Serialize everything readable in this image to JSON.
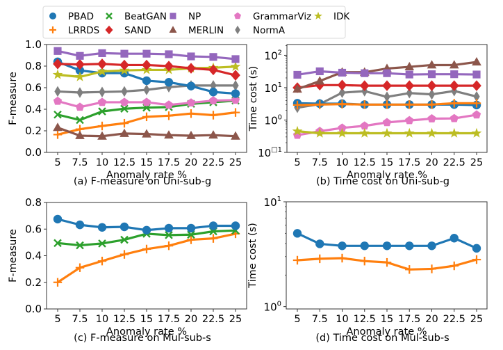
{
  "legend": {
    "entries": [
      {
        "name": "PBAD",
        "color": "#1f77b4",
        "marker": "circle"
      },
      {
        "name": "LRRDS",
        "color": "#ff7f0e",
        "marker": "plus"
      },
      {
        "name": "BeatGAN",
        "color": "#2ca02c",
        "marker": "x"
      },
      {
        "name": "SAND",
        "color": "#d62728",
        "marker": "diamond"
      },
      {
        "name": "NP",
        "color": "#9467bd",
        "marker": "square"
      },
      {
        "name": "MERLIN",
        "color": "#8c564b",
        "marker": "triangle"
      },
      {
        "name": "GrammarViz",
        "color": "#e377c2",
        "marker": "pentagon"
      },
      {
        "name": "NormA",
        "color": "#7f7f7f",
        "marker": "thin-diamond"
      },
      {
        "name": "IDK",
        "color": "#bcbd22",
        "marker": "star"
      }
    ],
    "placement": "top-center"
  },
  "chart_data": [
    {
      "id": "a",
      "type": "line",
      "title": "(a) F-measure on Uni-sub-g",
      "xlabel": "Anomaly rate %",
      "ylabel": "F-measure",
      "yscale": "linear",
      "ylim": [
        0.0,
        1.0
      ],
      "yticks": [
        0.0,
        0.2,
        0.4,
        0.6,
        0.8,
        1.0
      ],
      "ytick_labels": [
        "0.0",
        "0.2",
        "0.4",
        "0.6",
        "0.8",
        "1.0"
      ],
      "x": [
        5,
        7.5,
        10,
        12.5,
        15,
        17.5,
        20,
        22.5,
        25
      ],
      "xtick_labels": [
        "5",
        "7.5",
        "10",
        "12.5",
        "15",
        "17.5",
        "20",
        "22.5",
        "25"
      ],
      "grid": false,
      "series": [
        {
          "name": "LRRDS",
          "values": [
            0.165,
            0.215,
            0.245,
            0.27,
            0.33,
            0.34,
            0.36,
            0.345,
            0.37
          ]
        },
        {
          "name": "MERLIN",
          "values": [
            0.23,
            0.155,
            0.15,
            0.175,
            0.17,
            0.16,
            0.155,
            0.16,
            0.15
          ]
        },
        {
          "name": "BeatGAN",
          "values": [
            0.35,
            0.3,
            0.38,
            0.405,
            0.415,
            0.42,
            0.45,
            0.465,
            0.48
          ]
        },
        {
          "name": "GrammarViz",
          "values": [
            0.475,
            0.42,
            0.465,
            0.465,
            0.465,
            0.44,
            0.46,
            0.48,
            0.485
          ]
        },
        {
          "name": "NormA",
          "values": [
            0.565,
            0.555,
            0.56,
            0.565,
            0.58,
            0.605,
            0.62,
            0.62,
            0.62
          ]
        },
        {
          "name": "PBAD",
          "values": [
            0.84,
            0.76,
            0.735,
            0.735,
            0.665,
            0.65,
            0.615,
            0.56,
            0.545
          ]
        },
        {
          "name": "IDK",
          "values": [
            0.72,
            0.7,
            0.75,
            0.76,
            0.765,
            0.765,
            0.78,
            0.785,
            0.795
          ]
        },
        {
          "name": "SAND",
          "values": [
            0.82,
            0.815,
            0.82,
            0.81,
            0.81,
            0.8,
            0.78,
            0.765,
            0.715
          ]
        },
        {
          "name": "NP",
          "values": [
            0.94,
            0.895,
            0.92,
            0.915,
            0.915,
            0.91,
            0.89,
            0.885,
            0.865
          ]
        }
      ]
    },
    {
      "id": "b",
      "type": "line",
      "title": "(b) Time cost on Uni-sub-g",
      "xlabel": "Anomaly rate %",
      "ylabel": "Time cost (s)",
      "yscale": "log",
      "ylim": [
        0.1,
        215
      ],
      "yticks": [
        0.1,
        1,
        10,
        100
      ],
      "ytick_labels": [
        [
          "10",
          "□1"
        ],
        [
          "10",
          "0"
        ],
        [
          "10",
          "1"
        ],
        [
          "10",
          "2"
        ]
      ],
      "x": [
        5,
        7.5,
        10,
        12.5,
        15,
        17.5,
        20,
        22.5,
        25
      ],
      "xtick_labels": [
        "5",
        "7.5",
        "10",
        "12.5",
        "15",
        "17.5",
        "20",
        "22.5",
        "25"
      ],
      "grid": false,
      "series": [
        {
          "name": "GrammarViz",
          "values": [
            0.34,
            0.45,
            0.57,
            0.66,
            0.84,
            0.97,
            1.1,
            1.12,
            1.45
          ]
        },
        {
          "name": "IDK",
          "values": [
            0.45,
            0.39,
            0.39,
            0.39,
            0.39,
            0.39,
            0.39,
            0.39,
            0.39
          ]
        },
        {
          "name": "NormA",
          "values": [
            2.4,
            3.1,
            7.0,
            7.8,
            5.2,
            6.8,
            6.2,
            7.9,
            5.3
          ]
        },
        {
          "name": "PBAD",
          "values": [
            3.3,
            3.2,
            3.2,
            3.0,
            3.0,
            3.0,
            3.0,
            3.0,
            2.9
          ]
        },
        {
          "name": "LRRDS",
          "values": [
            2.9,
            3.0,
            3.1,
            3.0,
            3.0,
            3.0,
            3.0,
            3.3,
            3.3
          ]
        },
        {
          "name": "SAND",
          "values": [
            10.0,
            12.0,
            12.0,
            11.5,
            11.5,
            11.5,
            11.5,
            11.5,
            11.5
          ]
        },
        {
          "name": "MERLIN",
          "values": [
            9.0,
            16.0,
            30.0,
            30.0,
            39.0,
            44.0,
            50.0,
            50.0,
            62.0
          ]
        },
        {
          "name": "NP",
          "values": [
            25.0,
            32.0,
            29.0,
            28.0,
            28.0,
            25.5,
            26.0,
            26.0,
            25.5
          ]
        }
      ]
    },
    {
      "id": "c",
      "type": "line",
      "title": "(c) F-measure on Mul-sub-s",
      "xlabel": "Anomaly rate %",
      "ylabel": "F-measure",
      "yscale": "linear",
      "ylim": [
        0.0,
        0.8
      ],
      "yticks": [
        0.0,
        0.2,
        0.4,
        0.6,
        0.8
      ],
      "ytick_labels": [
        "0.0",
        "0.2",
        "0.4",
        "0.6",
        "0.8"
      ],
      "x": [
        5,
        7.5,
        10,
        12.5,
        15,
        17.5,
        20,
        22.5,
        25
      ],
      "xtick_labels": [
        "5",
        "7.5",
        "10",
        "12.5",
        "15",
        "17.5",
        "20",
        "22.5",
        "25"
      ],
      "grid": false,
      "series": [
        {
          "name": "LRRDS",
          "values": [
            0.2,
            0.31,
            0.36,
            0.41,
            0.45,
            0.475,
            0.52,
            0.53,
            0.565
          ]
        },
        {
          "name": "BeatGAN",
          "values": [
            0.495,
            0.478,
            0.492,
            0.52,
            0.565,
            0.555,
            0.558,
            0.583,
            0.59
          ]
        },
        {
          "name": "PBAD",
          "values": [
            0.675,
            0.632,
            0.613,
            0.617,
            0.592,
            0.607,
            0.607,
            0.625,
            0.625
          ]
        }
      ]
    },
    {
      "id": "d",
      "type": "line",
      "title": "(d) Time cost on Mul-sub-s",
      "xlabel": "Anomaly rate %",
      "ylabel": "Time cost (s)",
      "yscale": "log",
      "ylim": [
        0.95,
        10
      ],
      "yticks": [
        1,
        10
      ],
      "ytick_labels": [
        [
          "10",
          "0"
        ],
        [
          "10",
          "1"
        ]
      ],
      "x": [
        5,
        7.5,
        10,
        12.5,
        15,
        17.5,
        20,
        22.5,
        25
      ],
      "xtick_labels": [
        "5",
        "7.5",
        "10",
        "12.5",
        "15",
        "17.5",
        "20",
        "22.5",
        "25"
      ],
      "grid": false,
      "series": [
        {
          "name": "LRRDS",
          "values": [
            2.77,
            2.86,
            2.9,
            2.72,
            2.64,
            2.26,
            2.29,
            2.45,
            2.81
          ]
        },
        {
          "name": "PBAD",
          "values": [
            5.0,
            3.97,
            3.8,
            3.8,
            3.8,
            3.8,
            3.8,
            4.5,
            3.6
          ]
        }
      ]
    }
  ]
}
